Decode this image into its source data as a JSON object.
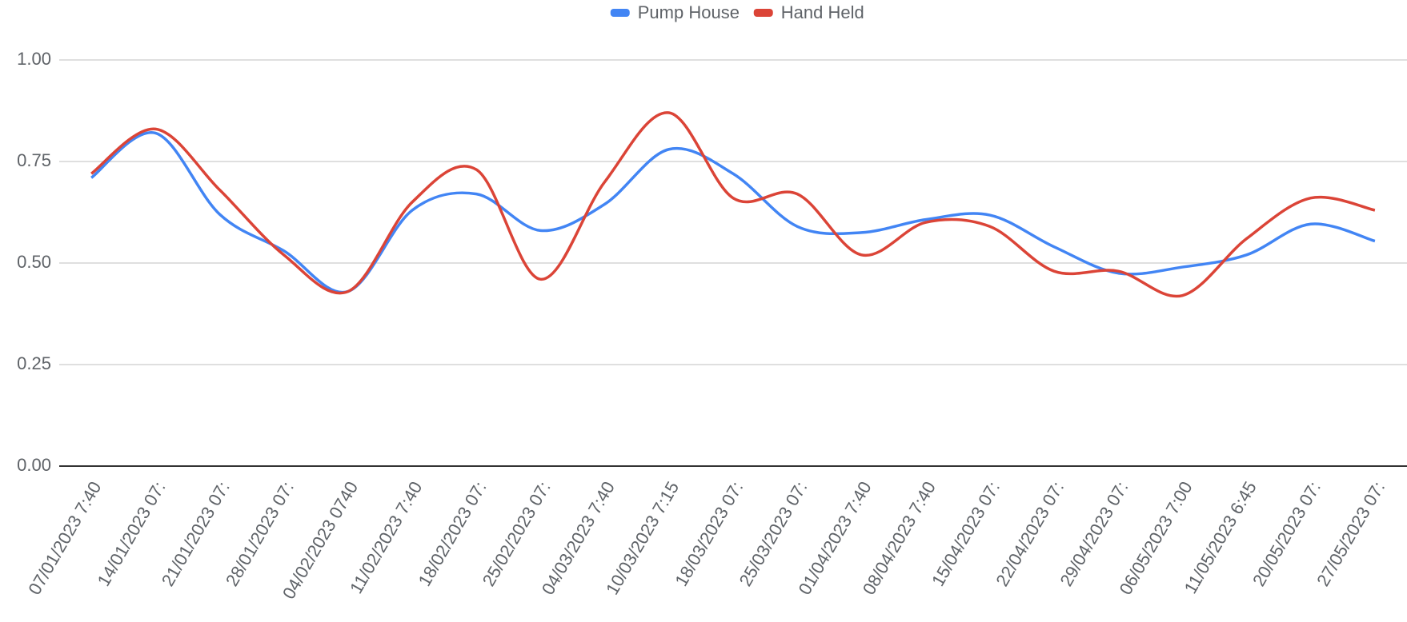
{
  "chart_data": {
    "type": "line",
    "categories": [
      "07/01/2023 7:40",
      "14/01/2023 07:",
      "21/01/2023 07:",
      "28/01/2023 07:",
      "04/02/2023 0740",
      "11/02/2023 7:40",
      "18/02/2023 07:",
      "25/02/2023 07:",
      "04/03/2023 7:40",
      "10/03/2023 7:15",
      "18/03/2023 07:",
      "25/03/2023 07:",
      "01/04/2023 7:40",
      "08/04/2023 7:40",
      "15/04/2023 07:",
      "22/04/2023 07:",
      "29/04/2023 07:",
      "06/05/2023 7:00",
      "11/05/2023 6:45",
      "20/05/2023 07:",
      "27/05/2023 07:"
    ],
    "series": [
      {
        "name": "Pump House",
        "color": "#4285f4",
        "values": [
          0.71,
          0.82,
          0.62,
          0.53,
          0.43,
          0.63,
          0.67,
          0.58,
          0.645,
          0.78,
          0.72,
          0.59,
          0.575,
          0.607,
          0.618,
          0.54,
          0.475,
          0.49,
          0.52,
          0.596,
          0.554
        ]
      },
      {
        "name": "Hand Held",
        "color": "#db4437",
        "values": [
          0.72,
          0.83,
          0.68,
          0.52,
          0.43,
          0.65,
          0.73,
          0.46,
          0.7,
          0.87,
          0.66,
          0.67,
          0.52,
          0.6,
          0.59,
          0.48,
          0.48,
          0.42,
          0.56,
          0.66,
          0.63
        ]
      }
    ],
    "ylim": [
      0,
      1.1
    ],
    "yticks": [
      {
        "value": 0,
        "label": "0.00"
      },
      {
        "value": 0.25,
        "label": "0.25"
      },
      {
        "value": 0.5,
        "label": "0.50"
      },
      {
        "value": 0.75,
        "label": "0.75"
      },
      {
        "value": 1,
        "label": "1.00"
      }
    ],
    "grid": true,
    "smooth": true,
    "legend": "top"
  }
}
